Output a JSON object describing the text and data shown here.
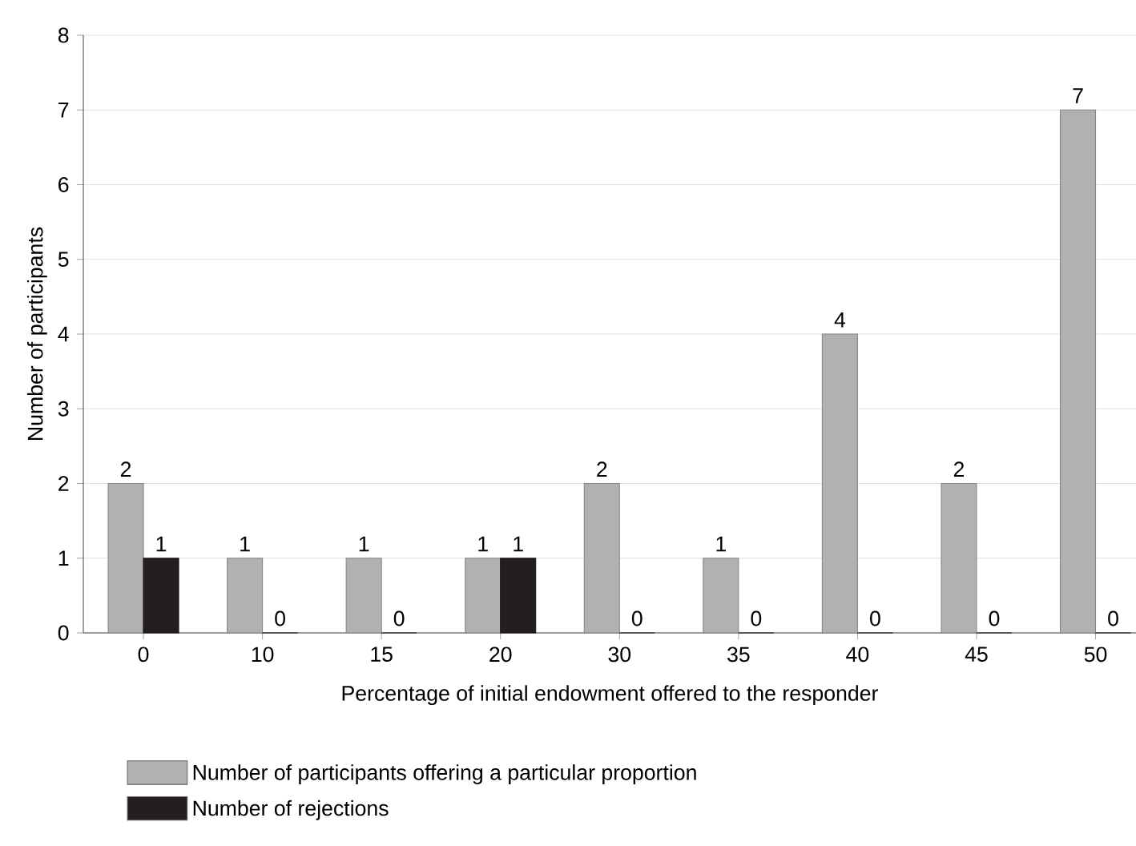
{
  "chart_data": {
    "type": "bar",
    "xlabel": "Percentage of initial endowment offered to the responder",
    "ylabel": "Number of participants",
    "categories": [
      "0",
      "10",
      "15",
      "20",
      "30",
      "35",
      "40",
      "45",
      "50"
    ],
    "series": [
      {
        "name": "Number of participants offering a particular proportion",
        "color": "#b1b1b3",
        "values": [
          2,
          1,
          1,
          1,
          2,
          1,
          4,
          2,
          7
        ]
      },
      {
        "name": "Number of rejections",
        "color": "#231f20",
        "values": [
          1,
          0,
          0,
          1,
          0,
          0,
          0,
          0,
          0
        ]
      }
    ],
    "ylim": [
      0,
      8
    ],
    "yticks": [
      0,
      1,
      2,
      3,
      4,
      5,
      6,
      7,
      8
    ],
    "grid": "y",
    "legend": "bottom",
    "data_labels": true
  }
}
